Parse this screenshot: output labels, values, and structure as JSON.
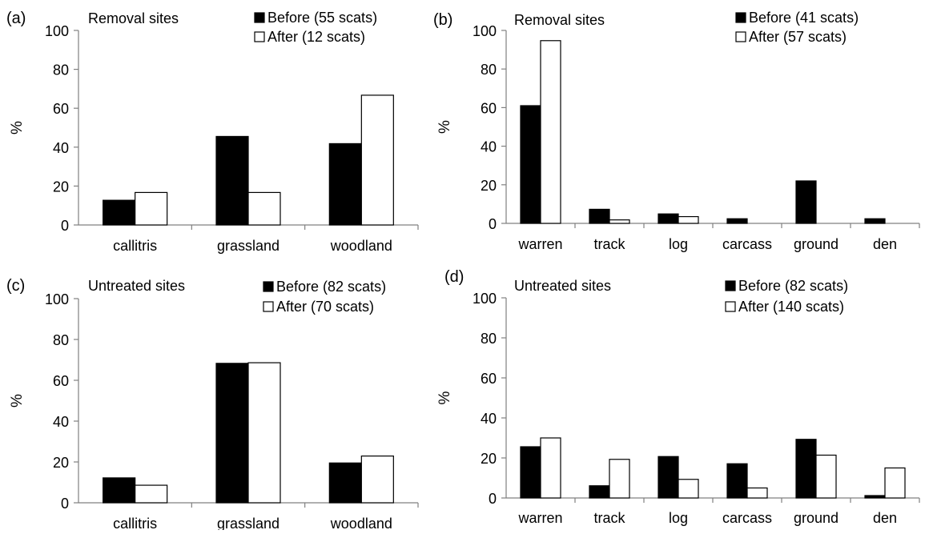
{
  "chart_data": [
    {
      "type": "bar",
      "panel_label": "(a)",
      "title": "Removal sites",
      "xlabel": "",
      "ylabel": "%",
      "ylim": [
        0,
        100
      ],
      "yticks": [
        0,
        20,
        40,
        60,
        80,
        100
      ],
      "categories": [
        "callitris",
        "grassland",
        "woodland"
      ],
      "series": [
        {
          "name": "Before (55 scats)",
          "color": "#000000",
          "values": [
            12.7,
            45.5,
            41.8
          ]
        },
        {
          "name": "After (12 scats)",
          "color": "#ffffff",
          "values": [
            16.7,
            16.7,
            66.7
          ]
        }
      ],
      "legend_position": "top-right",
      "grid": false
    },
    {
      "type": "bar",
      "panel_label": "(b)",
      "title": "Removal sites",
      "xlabel": "",
      "ylabel": "%",
      "ylim": [
        0,
        100
      ],
      "yticks": [
        0,
        20,
        40,
        60,
        80,
        100
      ],
      "categories": [
        "warren",
        "track",
        "log",
        "carcass",
        "ground",
        "den"
      ],
      "series": [
        {
          "name": "Before (41 scats)",
          "color": "#000000",
          "values": [
            61,
            7.3,
            4.9,
            2.4,
            22,
            2.4
          ]
        },
        {
          "name": "After (57 scats)",
          "color": "#ffffff",
          "values": [
            94.7,
            1.8,
            3.5,
            0,
            0,
            0
          ]
        }
      ],
      "legend_position": "top-right",
      "grid": false
    },
    {
      "type": "bar",
      "panel_label": "(c)",
      "title": "Untreated sites",
      "xlabel": "",
      "ylabel": "%",
      "ylim": [
        0,
        100
      ],
      "yticks": [
        0,
        20,
        40,
        60,
        80,
        100
      ],
      "categories": [
        "callitris",
        "grassland",
        "woodland"
      ],
      "series": [
        {
          "name": "Before (82 scats)",
          "color": "#000000",
          "values": [
            12.2,
            68.3,
            19.5
          ]
        },
        {
          "name": "After (70 scats)",
          "color": "#ffffff",
          "values": [
            8.6,
            68.6,
            22.9
          ]
        }
      ],
      "legend_position": "top-right",
      "grid": false
    },
    {
      "type": "bar",
      "panel_label": "(d)",
      "title": "Untreated sites",
      "xlabel": "",
      "ylabel": "%",
      "ylim": [
        0,
        100
      ],
      "yticks": [
        0,
        20,
        40,
        60,
        80,
        100
      ],
      "categories": [
        "warren",
        "track",
        "log",
        "carcass",
        "ground",
        "den"
      ],
      "series": [
        {
          "name": "Before (82 scats)",
          "color": "#000000",
          "values": [
            25.6,
            6.1,
            20.7,
            17.1,
            29.3,
            1.2
          ]
        },
        {
          "name": "After (140 scats)",
          "color": "#ffffff",
          "values": [
            30,
            19.3,
            9.3,
            5,
            21.4,
            15
          ]
        }
      ],
      "legend_position": "top-right",
      "grid": false
    }
  ]
}
